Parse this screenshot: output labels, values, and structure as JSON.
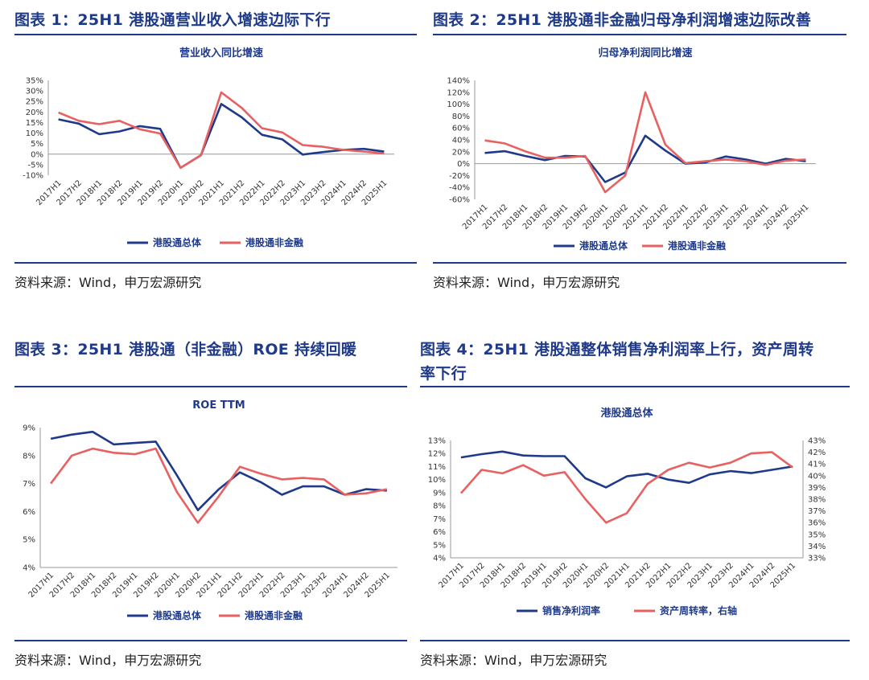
{
  "panels": [
    {
      "title": "图表 1：25H1 港股通营业收入增速边际下行",
      "source": "资料来源：Wind，申万宏源研究"
    },
    {
      "title": "图表 2：25H1 港股通非金融归母净利润增速边际改善",
      "source": "资料来源：Wind，申万宏源研究"
    },
    {
      "title": "图表 3：25H1 港股通（非金融）ROE 持续回暖",
      "source": "资料来源：Wind，申万宏源研究"
    },
    {
      "title_line1": "图表 4：25H1 港股通整体销售净利润率上行，资产周转",
      "title_line2": "率下行",
      "source": "资料来源：Wind，申万宏源研究"
    }
  ],
  "colors": {
    "blue": "#1f3a8a",
    "red": "#e8605f",
    "grid": "#d9d9d9"
  },
  "chart_data": [
    {
      "type": "line",
      "title": "营业收入同比增速",
      "categories": [
        "2017H1",
        "2017H2",
        "2018H1",
        "2018H2",
        "2019H1",
        "2019H2",
        "2020H1",
        "2020H2",
        "2021H1",
        "2021H2",
        "2022H1",
        "2022H2",
        "2023H1",
        "2023H2",
        "2024H1",
        "2024H2",
        "2025H1"
      ],
      "ylim": [
        -10,
        35
      ],
      "yticks": [
        -10,
        -5,
        0,
        5,
        10,
        15,
        20,
        25,
        30,
        35
      ],
      "ytick_suffix": "%",
      "legend": "bottom",
      "series": [
        {
          "name": "港股通总体",
          "color": "#1f3a8a",
          "values": [
            16.5,
            14.5,
            9.5,
            10.8,
            13.3,
            12.0,
            -6.5,
            -0.5,
            23.8,
            17.5,
            9.2,
            7.0,
            -0.2,
            1.0,
            2.0,
            2.5,
            1.2
          ]
        },
        {
          "name": "港股通非金融",
          "color": "#e8605f",
          "values": [
            19.8,
            15.8,
            14.2,
            15.8,
            11.8,
            9.8,
            -6.5,
            -0.5,
            29.3,
            22.0,
            12.3,
            10.3,
            4.3,
            3.5,
            2.0,
            1.2,
            0.3
          ]
        }
      ]
    },
    {
      "type": "line",
      "title": "归母净利润同比增速",
      "categories": [
        "2017H1",
        "2017H2",
        "2018H1",
        "2018H2",
        "2019H1",
        "2019H2",
        "2020H1",
        "2020H2",
        "2021H1",
        "2021H2",
        "2022H1",
        "2022H2",
        "2023H1",
        "2023H2",
        "2024H1",
        "2024H2",
        "2025H1"
      ],
      "ylim": [
        -60,
        140
      ],
      "yticks": [
        -60,
        -40,
        -20,
        0,
        20,
        40,
        60,
        80,
        100,
        120,
        140
      ],
      "ytick_suffix": "%",
      "legend": "bottom",
      "series": [
        {
          "name": "港股通总体",
          "color": "#1f3a8a",
          "values": [
            18,
            21,
            13,
            6,
            13,
            12,
            -31,
            -15,
            47,
            22,
            0,
            2,
            12,
            7,
            0,
            8,
            4
          ]
        },
        {
          "name": "港股通非金融",
          "color": "#e8605f",
          "values": [
            39,
            34,
            21,
            10,
            10,
            13,
            -48,
            -20,
            120,
            32,
            1,
            4,
            7,
            4,
            -2,
            5,
            7
          ]
        }
      ]
    },
    {
      "type": "line",
      "title": "ROE TTM",
      "categories": [
        "2017H1",
        "2017H2",
        "2018H1",
        "2018H2",
        "2019H1",
        "2019H2",
        "2020H1",
        "2020H2",
        "2021H1",
        "2021H2",
        "2022H1",
        "2022H2",
        "2023H1",
        "2023H2",
        "2024H1",
        "2024H2",
        "2025H1"
      ],
      "ylim": [
        4,
        9
      ],
      "yticks": [
        4,
        5,
        6,
        7,
        8,
        9
      ],
      "ytick_suffix": "%",
      "legend": "bottom",
      "series": [
        {
          "name": "港股通总体",
          "color": "#1f3a8a",
          "values": [
            8.6,
            8.75,
            8.85,
            8.4,
            8.45,
            8.5,
            7.3,
            6.05,
            6.8,
            7.4,
            7.05,
            6.6,
            6.9,
            6.9,
            6.6,
            6.8,
            6.75
          ]
        },
        {
          "name": "港股通非金融",
          "color": "#e8605f",
          "values": [
            7.0,
            8.0,
            8.25,
            8.1,
            8.05,
            8.25,
            6.7,
            5.6,
            6.55,
            7.6,
            7.35,
            7.15,
            7.2,
            7.15,
            6.6,
            6.65,
            6.8
          ]
        }
      ]
    },
    {
      "type": "line",
      "title": "港股通总体",
      "categories": [
        "2017H1",
        "2017H2",
        "2018H1",
        "2018H2",
        "2019H1",
        "2019H2",
        "2020H1",
        "2020H2",
        "2021H1",
        "2021H2",
        "2022H1",
        "2022H2",
        "2023H1",
        "2023H2",
        "2024H1",
        "2024H2",
        "2025H1"
      ],
      "ylim": [
        4,
        13
      ],
      "yticks": [
        4,
        5,
        6,
        7,
        8,
        9,
        10,
        11,
        12,
        13
      ],
      "ytick_suffix": "%",
      "y2lim": [
        33,
        43
      ],
      "y2ticks": [
        33,
        34,
        35,
        36,
        37,
        38,
        39,
        40,
        41,
        42,
        43
      ],
      "y2tick_suffix": "%",
      "legend": "bottom",
      "series": [
        {
          "name": "销售净利润率",
          "color": "#1f3a8a",
          "axis": "left",
          "values": [
            11.7,
            11.95,
            12.15,
            11.85,
            11.8,
            11.8,
            10.1,
            9.4,
            10.25,
            10.45,
            10.0,
            9.75,
            10.4,
            10.65,
            10.5,
            10.75,
            11.0
          ]
        },
        {
          "name": "资产周转率，右轴",
          "color": "#e8605f",
          "axis": "right",
          "values": [
            38.5,
            40.5,
            40.2,
            40.9,
            40.0,
            40.3,
            38.0,
            36.0,
            36.8,
            39.3,
            40.5,
            41.1,
            40.7,
            41.1,
            41.9,
            42.0,
            40.7
          ]
        }
      ]
    }
  ]
}
